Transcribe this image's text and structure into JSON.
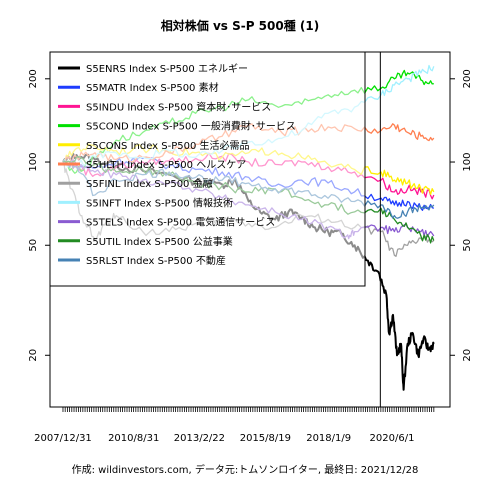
{
  "chart_data": {
    "type": "line",
    "title": "相対株価 vs S-P 500種 (1)",
    "caption": "作成: wildinvestors.com, データ元:トムソンロイター, 最終日: 2021/12/28",
    "y_scale": "log",
    "ylim": [
      13,
      250
    ],
    "y_ticks": [
      20,
      50,
      100,
      200
    ],
    "x_tick_labels": [
      "2007/12/31",
      "2010/8/31",
      "2013/2/22",
      "2015/8/19",
      "2018/1/9",
      "2020/6/1"
    ],
    "x_tick_values": [
      2007.99,
      2010.66,
      2013.14,
      2015.63,
      2018.02,
      2020.41
    ],
    "xlim": [
      2007.5,
      2022.6
    ],
    "x_start": 2007.99,
    "x_end": 2021.99,
    "vline_x": 2019.97,
    "legend": {
      "placement": "top-left",
      "box": "framed"
    },
    "series": [
      {
        "name": "S5ENRS Index S-P500 エネルギー",
        "color": "#000000",
        "width": 2.0,
        "points": [
          [
            2007.99,
            100
          ],
          [
            2008.5,
            106
          ],
          [
            2009.2,
            102
          ],
          [
            2010.0,
            97
          ],
          [
            2011.0,
            93
          ],
          [
            2012.0,
            90
          ],
          [
            2013.0,
            85
          ],
          [
            2014.0,
            83
          ],
          [
            2014.5,
            86
          ],
          [
            2015.0,
            72
          ],
          [
            2015.5,
            65
          ],
          [
            2016.0,
            62
          ],
          [
            2016.5,
            66
          ],
          [
            2017.0,
            63
          ],
          [
            2017.5,
            58
          ],
          [
            2018.0,
            56
          ],
          [
            2018.5,
            55
          ],
          [
            2019.0,
            50
          ],
          [
            2019.5,
            44
          ],
          [
            2019.9,
            40
          ],
          [
            2020.2,
            33
          ],
          [
            2020.3,
            24
          ],
          [
            2020.45,
            28
          ],
          [
            2020.6,
            20
          ],
          [
            2020.75,
            22
          ],
          [
            2020.85,
            15
          ],
          [
            2021.0,
            22
          ],
          [
            2021.2,
            24
          ],
          [
            2021.4,
            20
          ],
          [
            2021.6,
            23
          ],
          [
            2021.8,
            21
          ],
          [
            2021.99,
            22
          ]
        ]
      },
      {
        "name": "S5MATR Index S-P500 素材",
        "color": "#1e3cff",
        "width": 1.3,
        "points": [
          [
            2007.99,
            100
          ],
          [
            2008.5,
            98
          ],
          [
            2009.2,
            95
          ],
          [
            2010.0,
            100
          ],
          [
            2011.0,
            103
          ],
          [
            2012.0,
            97
          ],
          [
            2013.0,
            94
          ],
          [
            2014.0,
            92
          ],
          [
            2015.0,
            88
          ],
          [
            2016.0,
            82
          ],
          [
            2017.0,
            86
          ],
          [
            2018.0,
            84
          ],
          [
            2019.0,
            78
          ],
          [
            2020.0,
            74
          ],
          [
            2020.5,
            70
          ],
          [
            2021.0,
            72
          ],
          [
            2021.5,
            68
          ],
          [
            2021.99,
            68
          ]
        ]
      },
      {
        "name": "S5INDU Index S-P500 資本財･サービス",
        "color": "#ff1493",
        "width": 1.3,
        "points": [
          [
            2007.99,
            100
          ],
          [
            2008.5,
            96
          ],
          [
            2009.2,
            90
          ],
          [
            2010.0,
            96
          ],
          [
            2011.0,
            100
          ],
          [
            2012.0,
            101
          ],
          [
            2013.0,
            103
          ],
          [
            2014.0,
            105
          ],
          [
            2015.0,
            100
          ],
          [
            2016.0,
            98
          ],
          [
            2017.0,
            100
          ],
          [
            2018.0,
            96
          ],
          [
            2019.0,
            92
          ],
          [
            2020.0,
            86
          ],
          [
            2020.5,
            78
          ],
          [
            2021.0,
            80
          ],
          [
            2021.5,
            78
          ],
          [
            2021.99,
            76
          ]
        ]
      },
      {
        "name": "S5COND Index S-P500 一般消費財･サービス",
        "color": "#00e000",
        "width": 1.3,
        "points": [
          [
            2007.99,
            100
          ],
          [
            2008.5,
            92
          ],
          [
            2009.2,
            104
          ],
          [
            2010.0,
            120
          ],
          [
            2011.0,
            128
          ],
          [
            2012.0,
            138
          ],
          [
            2013.0,
            150
          ],
          [
            2014.0,
            158
          ],
          [
            2015.0,
            168
          ],
          [
            2016.0,
            160
          ],
          [
            2017.0,
            162
          ],
          [
            2018.0,
            175
          ],
          [
            2019.0,
            182
          ],
          [
            2020.0,
            185
          ],
          [
            2020.5,
            200
          ],
          [
            2021.0,
            210
          ],
          [
            2021.5,
            198
          ],
          [
            2021.99,
            192
          ]
        ]
      },
      {
        "name": "S5CONS Index S-P500 生活必需品",
        "color": "#ffee00",
        "width": 1.3,
        "points": [
          [
            2007.99,
            100
          ],
          [
            2008.5,
            112
          ],
          [
            2009.2,
            114
          ],
          [
            2010.0,
            110
          ],
          [
            2011.0,
            112
          ],
          [
            2012.0,
            110
          ],
          [
            2013.0,
            108
          ],
          [
            2014.0,
            104
          ],
          [
            2015.0,
            108
          ],
          [
            2016.0,
            110
          ],
          [
            2017.0,
            104
          ],
          [
            2018.0,
            98
          ],
          [
            2019.0,
            94
          ],
          [
            2020.0,
            92
          ],
          [
            2020.5,
            86
          ],
          [
            2021.0,
            84
          ],
          [
            2021.5,
            80
          ],
          [
            2021.99,
            78
          ]
        ]
      },
      {
        "name": "S5HLTH Index S-P500 ヘルスケア",
        "color": "#ff7f50",
        "width": 1.3,
        "points": [
          [
            2007.99,
            100
          ],
          [
            2008.5,
            104
          ],
          [
            2009.2,
            108
          ],
          [
            2010.0,
            102
          ],
          [
            2011.0,
            104
          ],
          [
            2012.0,
            108
          ],
          [
            2013.0,
            116
          ],
          [
            2014.0,
            124
          ],
          [
            2015.0,
            136
          ],
          [
            2016.0,
            128
          ],
          [
            2017.0,
            130
          ],
          [
            2018.0,
            134
          ],
          [
            2019.0,
            132
          ],
          [
            2020.0,
            130
          ],
          [
            2020.5,
            136
          ],
          [
            2021.0,
            128
          ],
          [
            2021.5,
            124
          ],
          [
            2021.99,
            122
          ]
        ]
      },
      {
        "name": "S5FINL Index S-P500 金融",
        "color": "#a0a0a0",
        "width": 1.3,
        "points": [
          [
            2007.99,
            100
          ],
          [
            2008.3,
            80
          ],
          [
            2008.7,
            64
          ],
          [
            2009.2,
            52
          ],
          [
            2009.6,
            60
          ],
          [
            2010.0,
            64
          ],
          [
            2011.0,
            56
          ],
          [
            2012.0,
            56
          ],
          [
            2013.0,
            60
          ],
          [
            2014.0,
            62
          ],
          [
            2015.0,
            60
          ],
          [
            2016.0,
            58
          ],
          [
            2017.0,
            64
          ],
          [
            2018.0,
            62
          ],
          [
            2019.0,
            58
          ],
          [
            2020.0,
            56
          ],
          [
            2020.5,
            46
          ],
          [
            2021.0,
            50
          ],
          [
            2021.5,
            53
          ],
          [
            2021.99,
            52
          ]
        ]
      },
      {
        "name": "S5INFT Index S-P500 情報技術",
        "color": "#a0f0ff",
        "width": 1.3,
        "points": [
          [
            2007.99,
            100
          ],
          [
            2008.5,
            98
          ],
          [
            2009.2,
            104
          ],
          [
            2010.0,
            108
          ],
          [
            2011.0,
            104
          ],
          [
            2012.0,
            110
          ],
          [
            2013.0,
            104
          ],
          [
            2014.0,
            110
          ],
          [
            2015.0,
            118
          ],
          [
            2016.0,
            120
          ],
          [
            2017.0,
            130
          ],
          [
            2018.0,
            150
          ],
          [
            2019.0,
            158
          ],
          [
            2020.0,
            175
          ],
          [
            2020.5,
            190
          ],
          [
            2021.0,
            200
          ],
          [
            2021.5,
            210
          ],
          [
            2021.99,
            222
          ]
        ]
      },
      {
        "name": "S5TELS Index S-P500 電気通信サービス",
        "color": "#8a5bd1",
        "width": 1.3,
        "points": [
          [
            2007.99,
            100
          ],
          [
            2008.5,
            98
          ],
          [
            2009.2,
            92
          ],
          [
            2010.0,
            90
          ],
          [
            2011.0,
            86
          ],
          [
            2012.0,
            84
          ],
          [
            2013.0,
            80
          ],
          [
            2014.0,
            74
          ],
          [
            2015.0,
            70
          ],
          [
            2016.0,
            66
          ],
          [
            2017.0,
            62
          ],
          [
            2018.0,
            58
          ],
          [
            2018.7,
            54
          ],
          [
            2019.0,
            56
          ],
          [
            2020.0,
            58
          ],
          [
            2020.5,
            56
          ],
          [
            2021.0,
            58
          ],
          [
            2021.5,
            56
          ],
          [
            2021.99,
            54
          ]
        ]
      },
      {
        "name": "S5UTIL Index S-P500 公益事業",
        "color": "#228b22",
        "width": 1.3,
        "points": [
          [
            2007.99,
            100
          ],
          [
            2008.5,
            104
          ],
          [
            2009.2,
            98
          ],
          [
            2010.0,
            92
          ],
          [
            2011.0,
            94
          ],
          [
            2012.0,
            90
          ],
          [
            2013.0,
            84
          ],
          [
            2014.0,
            82
          ],
          [
            2015.0,
            78
          ],
          [
            2016.0,
            80
          ],
          [
            2017.0,
            74
          ],
          [
            2018.0,
            70
          ],
          [
            2019.0,
            66
          ],
          [
            2020.0,
            68
          ],
          [
            2020.5,
            62
          ],
          [
            2021.0,
            58
          ],
          [
            2021.5,
            54
          ],
          [
            2021.99,
            52
          ]
        ]
      },
      {
        "name": "S5RLST Index S-P500 不動産",
        "color": "#4682b4",
        "width": 1.3,
        "points": [
          [
            2007.99,
            100
          ],
          [
            2008.5,
            96
          ],
          [
            2009.2,
            76
          ],
          [
            2010.0,
            86
          ],
          [
            2011.0,
            90
          ],
          [
            2012.0,
            92
          ],
          [
            2013.0,
            88
          ],
          [
            2014.0,
            86
          ],
          [
            2015.0,
            84
          ],
          [
            2016.0,
            80
          ],
          [
            2017.0,
            78
          ],
          [
            2018.0,
            74
          ],
          [
            2019.0,
            72
          ],
          [
            2020.0,
            70
          ],
          [
            2020.5,
            64
          ],
          [
            2021.0,
            66
          ],
          [
            2021.5,
            68
          ],
          [
            2021.99,
            70
          ]
        ]
      }
    ]
  }
}
